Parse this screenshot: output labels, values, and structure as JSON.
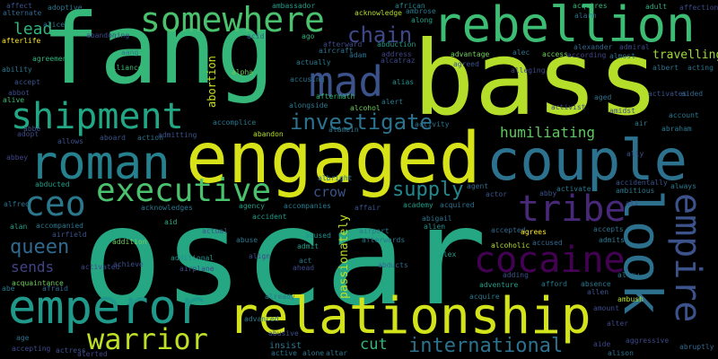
{
  "background": "#000000",
  "words": [
    {
      "text": "oscar",
      "color": "#26a784",
      "rotate": 0
    },
    {
      "text": "bass",
      "color": "#b5de2b",
      "rotate": 0
    },
    {
      "text": "fang",
      "color": "#35b779",
      "rotate": 0
    },
    {
      "text": "engaged",
      "color": "#d8e219",
      "rotate": 0
    },
    {
      "text": "relationship",
      "color": "#d2e21b",
      "rotate": 0
    },
    {
      "text": "couple",
      "color": "#2c728e",
      "rotate": 0
    },
    {
      "text": "roman",
      "color": "#26818e",
      "rotate": 0
    },
    {
      "text": "rebellion",
      "color": "#3dbc74",
      "rotate": 0
    },
    {
      "text": "emperor",
      "color": "#1f9a8a",
      "rotate": 0
    },
    {
      "text": "somewhere",
      "color": "#4ac16d",
      "rotate": 0
    },
    {
      "text": "shipment",
      "color": "#22a785",
      "rotate": 0
    },
    {
      "text": "look",
      "color": "#2d708e",
      "rotate": 90
    },
    {
      "text": "empire",
      "color": "#3b528b",
      "rotate": 90
    },
    {
      "text": "cocaine",
      "color": "#440154",
      "rotate": 0
    },
    {
      "text": "executive",
      "color": "#4ac16d",
      "rotate": 0
    },
    {
      "text": "mad",
      "color": "#3b528b",
      "rotate": 0
    },
    {
      "text": "tribe",
      "color": "#482878",
      "rotate": 0
    },
    {
      "text": "ceo",
      "color": "#2a788e",
      "rotate": 0
    },
    {
      "text": "warrior",
      "color": "#bddf26",
      "rotate": 0
    },
    {
      "text": "investigate",
      "color": "#2c728e",
      "rotate": 0
    },
    {
      "text": "chain",
      "color": "#3e4989",
      "rotate": 0
    },
    {
      "text": "queen",
      "color": "#31688e",
      "rotate": 0
    },
    {
      "text": "supply",
      "color": "#23888e",
      "rotate": 0
    },
    {
      "text": "international",
      "color": "#2c728e",
      "rotate": 0
    },
    {
      "text": "humiliating",
      "color": "#5ec962",
      "rotate": 0
    },
    {
      "text": "lead",
      "color": "#2fb47c",
      "rotate": 0
    },
    {
      "text": "sends",
      "color": "#414487",
      "rotate": 0
    },
    {
      "text": "crow",
      "color": "#3b528b",
      "rotate": 0
    },
    {
      "text": "cut",
      "color": "#35b779",
      "rotate": 0
    },
    {
      "text": "travelling",
      "color": "#a0da39",
      "rotate": 0
    },
    {
      "text": "passionately",
      "color": "#bddf26",
      "rotate": 270
    },
    {
      "text": "abortion",
      "color": "#c8e020",
      "rotate": 270
    },
    {
      "text": "alcohol",
      "color": "#6ece58",
      "rotate": 0
    },
    {
      "text": "ambassador",
      "color": "#1f9e89",
      "rotate": 0
    },
    {
      "text": "adoptive",
      "color": "#2a788e",
      "rotate": 0
    },
    {
      "text": "acknowledge",
      "color": "#b5de2b",
      "rotate": 0
    },
    {
      "text": "african",
      "color": "#25848e",
      "rotate": 0
    },
    {
      "text": "ambrose",
      "color": "#2a788e",
      "rotate": 0
    },
    {
      "text": "acquires",
      "color": "#35b779",
      "rotate": 0
    },
    {
      "text": "adult",
      "color": "#29af7f",
      "rotate": 0
    },
    {
      "text": "affection",
      "color": "#3e4989",
      "rotate": 0
    },
    {
      "text": "alarm",
      "color": "#2d708e",
      "rotate": 0
    },
    {
      "text": "along",
      "color": "#20a386",
      "rotate": 0
    },
    {
      "text": "abduction",
      "color": "#1f9a8a",
      "rotate": 0
    },
    {
      "text": "address",
      "color": "#414487",
      "rotate": 0
    },
    {
      "text": "afterward",
      "color": "#3e4989",
      "rotate": 0
    },
    {
      "text": "alexander",
      "color": "#31688e",
      "rotate": 0
    },
    {
      "text": "admiral",
      "color": "#3e4989",
      "rotate": 0
    },
    {
      "text": "actually",
      "color": "#2a788e",
      "rotate": 0
    },
    {
      "text": "acid",
      "color": "#355f8d",
      "rotate": 0
    },
    {
      "text": "ago",
      "color": "#2fb47c",
      "rotate": 0
    },
    {
      "text": "afterlife",
      "color": "#fde725",
      "rotate": 0
    },
    {
      "text": "agreement",
      "color": "#2fb47c",
      "rotate": 0
    },
    {
      "text": "alliance",
      "color": "#3dbc74",
      "rotate": 0
    },
    {
      "text": "alpha",
      "color": "#6ece58",
      "rotate": 0
    },
    {
      "text": "alias",
      "color": "#21918c",
      "rotate": 0
    },
    {
      "text": "aftermath",
      "color": "#35b779",
      "rotate": 0
    },
    {
      "text": "alongside",
      "color": "#2a788e",
      "rotate": 0
    },
    {
      "text": "alert",
      "color": "#2a788e",
      "rotate": 0
    },
    {
      "text": "accept",
      "color": "#3b528b",
      "rotate": 0
    },
    {
      "text": "alive",
      "color": "#3dbc74",
      "rotate": 0
    },
    {
      "text": "adopt",
      "color": "#3e4989",
      "rotate": 0
    },
    {
      "text": "allows",
      "color": "#3b528b",
      "rotate": 0
    },
    {
      "text": "aboard",
      "color": "#3b528b",
      "rotate": 0
    },
    {
      "text": "action",
      "color": "#2c728e",
      "rotate": 0
    },
    {
      "text": "admitting",
      "color": "#3b528b",
      "rotate": 0
    },
    {
      "text": "abandon",
      "color": "#b5de2b",
      "rotate": 0
    },
    {
      "text": "abbey",
      "color": "#414487",
      "rotate": 0
    },
    {
      "text": "abducted",
      "color": "#1f9e89",
      "rotate": 0
    },
    {
      "text": "alfred",
      "color": "#2c728e",
      "rotate": 0
    },
    {
      "text": "alan",
      "color": "#1f9e89",
      "rotate": 0
    },
    {
      "text": "accompanied",
      "color": "#2a788e",
      "rotate": 0
    },
    {
      "text": "aid",
      "color": "#27ad81",
      "rotate": 0
    },
    {
      "text": "actual",
      "color": "#3b528b",
      "rotate": 0
    },
    {
      "text": "addition",
      "color": "#6ece58",
      "rotate": 0
    },
    {
      "text": "additional",
      "color": "#21918c",
      "rotate": 0
    },
    {
      "text": "abuse",
      "color": "#2a788e",
      "rotate": 0
    },
    {
      "text": "align",
      "color": "#3e4989",
      "rotate": 0
    },
    {
      "text": "accident",
      "color": "#1f9e89",
      "rotate": 0
    },
    {
      "text": "accompanies",
      "color": "#2a788e",
      "rotate": 0
    },
    {
      "text": "admit",
      "color": "#1f9e89",
      "rotate": 0
    },
    {
      "text": "act",
      "color": "#2a788e",
      "rotate": 0
    },
    {
      "text": "ahead",
      "color": "#3e4989",
      "rotate": 0
    },
    {
      "text": "abused",
      "color": "#21918c",
      "rotate": 0
    },
    {
      "text": "airport",
      "color": "#2a788e",
      "rotate": 0
    },
    {
      "text": "afterwards",
      "color": "#2a788e",
      "rotate": 0
    },
    {
      "text": "abigail",
      "color": "#2c728e",
      "rotate": 0
    },
    {
      "text": "alien",
      "color": "#21918c",
      "rotate": 0
    },
    {
      "text": "accepted",
      "color": "#31688e",
      "rotate": 0
    },
    {
      "text": "alcoholic",
      "color": "#b5de2b",
      "rotate": 0
    },
    {
      "text": "agrees",
      "color": "#fde725",
      "rotate": 0
    },
    {
      "text": "accused",
      "color": "#31688e",
      "rotate": 0
    },
    {
      "text": "accepts",
      "color": "#2c728e",
      "rotate": 0
    },
    {
      "text": "admits",
      "color": "#2a788e",
      "rotate": 0
    },
    {
      "text": "abducts",
      "color": "#31688e",
      "rotate": 0
    },
    {
      "text": "adventure",
      "color": "#1f9e89",
      "rotate": 0
    },
    {
      "text": "acquire",
      "color": "#2a788e",
      "rotate": 0
    },
    {
      "text": "afford",
      "color": "#2a788e",
      "rotate": 0
    },
    {
      "text": "absence",
      "color": "#2a788e",
      "rotate": 0
    },
    {
      "text": "allen",
      "color": "#3b528b",
      "rotate": 0
    },
    {
      "text": "ambush",
      "color": "#b5de2b",
      "rotate": 0
    },
    {
      "text": "aggressive",
      "color": "#3e4989",
      "rotate": 0
    },
    {
      "text": "abruptly",
      "color": "#31688e",
      "rotate": 0
    },
    {
      "text": "alison",
      "color": "#2c728e",
      "rotate": 0
    },
    {
      "text": "acquaintance",
      "color": "#6ece58",
      "rotate": 0
    },
    {
      "text": "afraid",
      "color": "#31688e",
      "rotate": 0
    },
    {
      "text": "age",
      "color": "#2c728e",
      "rotate": 0
    },
    {
      "text": "accepting",
      "color": "#3e4989",
      "rotate": 0
    },
    {
      "text": "actress",
      "color": "#3b528b",
      "rotate": 0
    },
    {
      "text": "alerted",
      "color": "#414487",
      "rotate": 0
    },
    {
      "text": "advanced",
      "color": "#2a788e",
      "rotate": 0
    },
    {
      "text": "insist",
      "color": "#2a788e",
      "rotate": 0
    },
    {
      "text": "active",
      "color": "#2a788e",
      "rotate": 0
    },
    {
      "text": "alone",
      "color": "#2a788e",
      "rotate": 0
    },
    {
      "text": "altar",
      "color": "#2a788e",
      "rotate": 0
    },
    {
      "text": "already",
      "color": "#2a788e",
      "rotate": 0
    },
    {
      "text": "account",
      "color": "#2a788e",
      "rotate": 0
    },
    {
      "text": "abraham",
      "color": "#2a788e",
      "rotate": 0
    },
    {
      "text": "activate",
      "color": "#2a788e",
      "rotate": 0
    },
    {
      "text": "accidentally",
      "color": "#3b528b",
      "rotate": 0
    },
    {
      "text": "ambitious",
      "color": "#2a788e",
      "rotate": 0
    },
    {
      "text": "abby",
      "color": "#3b528b",
      "rotate": 0
    },
    {
      "text": "actor",
      "color": "#3b528b",
      "rotate": 0
    },
    {
      "text": "agent",
      "color": "#31688e",
      "rotate": 0
    },
    {
      "text": "acquired",
      "color": "#2c728e",
      "rotate": 0
    },
    {
      "text": "academy",
      "color": "#1f9e89",
      "rotate": 0
    },
    {
      "text": "affair",
      "color": "#3b528b",
      "rotate": 0
    },
    {
      "text": "ali",
      "color": "#3e4989",
      "rotate": 0
    },
    {
      "text": "activist",
      "color": "#3e4989",
      "rotate": 0
    },
    {
      "text": "aged",
      "color": "#2c728e",
      "rotate": 0
    },
    {
      "text": "air",
      "color": "#2a788e",
      "rotate": 0
    },
    {
      "text": "activates",
      "color": "#3b528b",
      "rotate": 0
    },
    {
      "text": "aided",
      "color": "#31688e",
      "rotate": 0
    },
    {
      "text": "albert",
      "color": "#2c728e",
      "rotate": 0
    },
    {
      "text": "acting",
      "color": "#2c728e",
      "rotate": 0
    },
    {
      "text": "advantage",
      "color": "#6ece58",
      "rotate": 0
    },
    {
      "text": "agreed",
      "color": "#3b528b",
      "rotate": 0
    },
    {
      "text": "alec",
      "color": "#2c728e",
      "rotate": 0
    },
    {
      "text": "access",
      "color": "#6ece58",
      "rotate": 0
    },
    {
      "text": "according",
      "color": "#414487",
      "rotate": 0
    },
    {
      "text": "almost",
      "color": "#2c728e",
      "rotate": 0
    },
    {
      "text": "ability",
      "color": "#2a788e",
      "rotate": 0
    },
    {
      "text": "alice",
      "color": "#2c728e",
      "rotate": 0
    },
    {
      "text": "affect",
      "color": "#3b528b",
      "rotate": 0
    },
    {
      "text": "alternate",
      "color": "#31688e",
      "rotate": 0
    },
    {
      "text": "aang",
      "color": "#2a788e",
      "rotate": 0
    },
    {
      "text": "adam",
      "color": "#2c728e",
      "rotate": 0
    },
    {
      "text": "accomplice",
      "color": "#2a788e",
      "rotate": 0
    },
    {
      "text": "aircraft",
      "color": "#2c728e",
      "rotate": 0
    },
    {
      "text": "accusing",
      "color": "#2c728e",
      "rotate": 0
    },
    {
      "text": "alamein",
      "color": "#2a788e",
      "rotate": 0
    },
    {
      "text": "activity",
      "color": "#2c728e",
      "rotate": 0
    },
    {
      "text": "albright",
      "color": "#2c728e",
      "rotate": 0
    },
    {
      "text": "alex",
      "color": "#1f9e89",
      "rotate": 0
    },
    {
      "text": "agency",
      "color": "#1f9e89",
      "rotate": 0
    },
    {
      "text": "allow",
      "color": "#2a788e",
      "rotate": 0
    },
    {
      "text": "alleging",
      "color": "#3e4989",
      "rotate": 0
    },
    {
      "text": "airfield",
      "color": "#3b528b",
      "rotate": 0
    },
    {
      "text": "acknowledges",
      "color": "#2a788e",
      "rotate": 0
    },
    {
      "text": "achieve",
      "color": "#3b528b",
      "rotate": 0
    },
    {
      "text": "abe",
      "color": "#2a788e",
      "rotate": 0
    },
    {
      "text": "airplane",
      "color": "#3e4989",
      "rotate": 0
    },
    {
      "text": "alter",
      "color": "#3e4989",
      "rotate": 0
    },
    {
      "text": "always",
      "color": "#2a788e",
      "rotate": 0
    },
    {
      "text": "abandoning",
      "color": "#3e4989",
      "rotate": 0
    },
    {
      "text": "adding",
      "color": "#3b528b",
      "rotate": 0
    },
    {
      "text": "amidst",
      "color": "#3e4989",
      "rotate": 0
    },
    {
      "text": "amount",
      "color": "#3e4989",
      "rotate": 0
    },
    {
      "text": "activated",
      "color": "#3e4989",
      "rotate": 0
    },
    {
      "text": "abusive",
      "color": "#3b528b",
      "rotate": 0
    },
    {
      "text": "ally",
      "color": "#3b528b",
      "rotate": 0
    },
    {
      "text": "abbot",
      "color": "#3e4989",
      "rotate": 0
    },
    {
      "text": "abbe",
      "color": "#3b528b",
      "rotate": 0
    },
    {
      "text": "aide",
      "color": "#3e4989",
      "rotate": 0
    },
    {
      "text": "alcatraz",
      "color": "#3e4989",
      "rotate": 0
    }
  ]
}
